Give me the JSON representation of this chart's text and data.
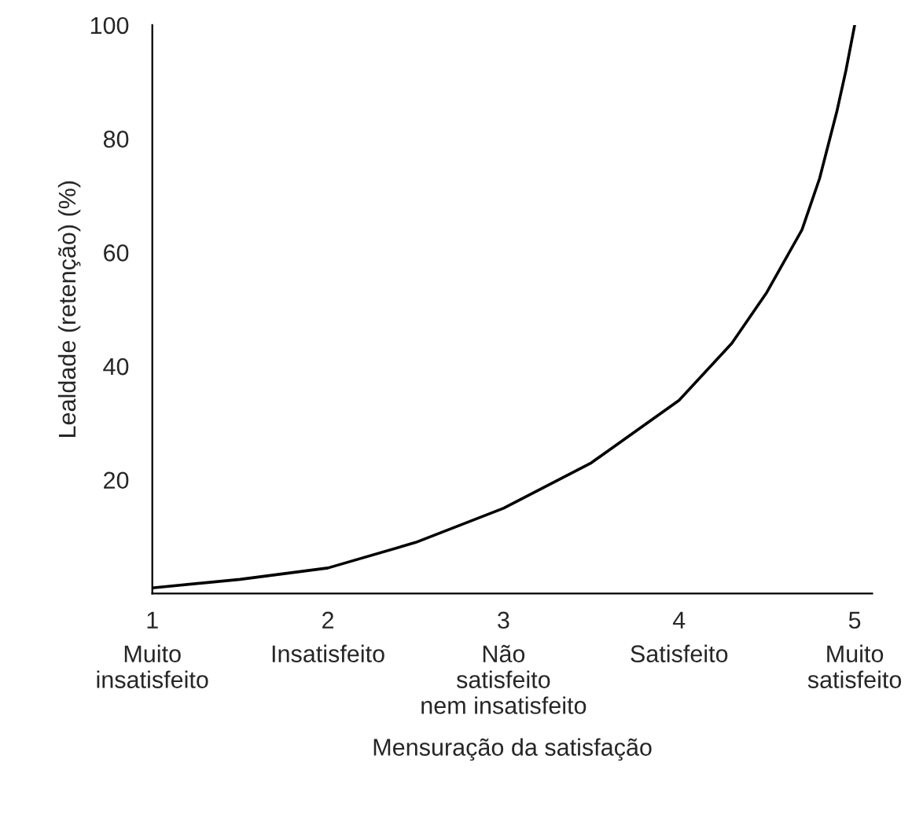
{
  "chart_data": {
    "type": "line",
    "xlabel": "Mensuração da satisfação",
    "ylabel": "Lealdade (retenção) (%)",
    "x": [
      1,
      1.5,
      2,
      2.5,
      3,
      3.5,
      4,
      4.3,
      4.5,
      4.7,
      4.8,
      4.9,
      4.95,
      5
    ],
    "series": [
      {
        "color": "#000000",
        "values": [
          1,
          2.5,
          4.5,
          9,
          15,
          23,
          34,
          44,
          53,
          64,
          73,
          85,
          92,
          100
        ]
      }
    ],
    "xlim": [
      1,
      5.1
    ],
    "ylim": [
      0,
      100
    ],
    "xticks": [
      1,
      2,
      3,
      4,
      5
    ],
    "annotations": [
      "Muito\ninsatisfeito",
      "Insatisfeito",
      "Não\nsatisfeito\nnem insatisfeito",
      "Satisfeito",
      "Muito\nsatisfeito"
    ],
    "yticks": [
      20,
      40,
      60,
      80,
      100
    ],
    "grid": false,
    "legend": false,
    "marker": "none",
    "line_style": "solid"
  }
}
